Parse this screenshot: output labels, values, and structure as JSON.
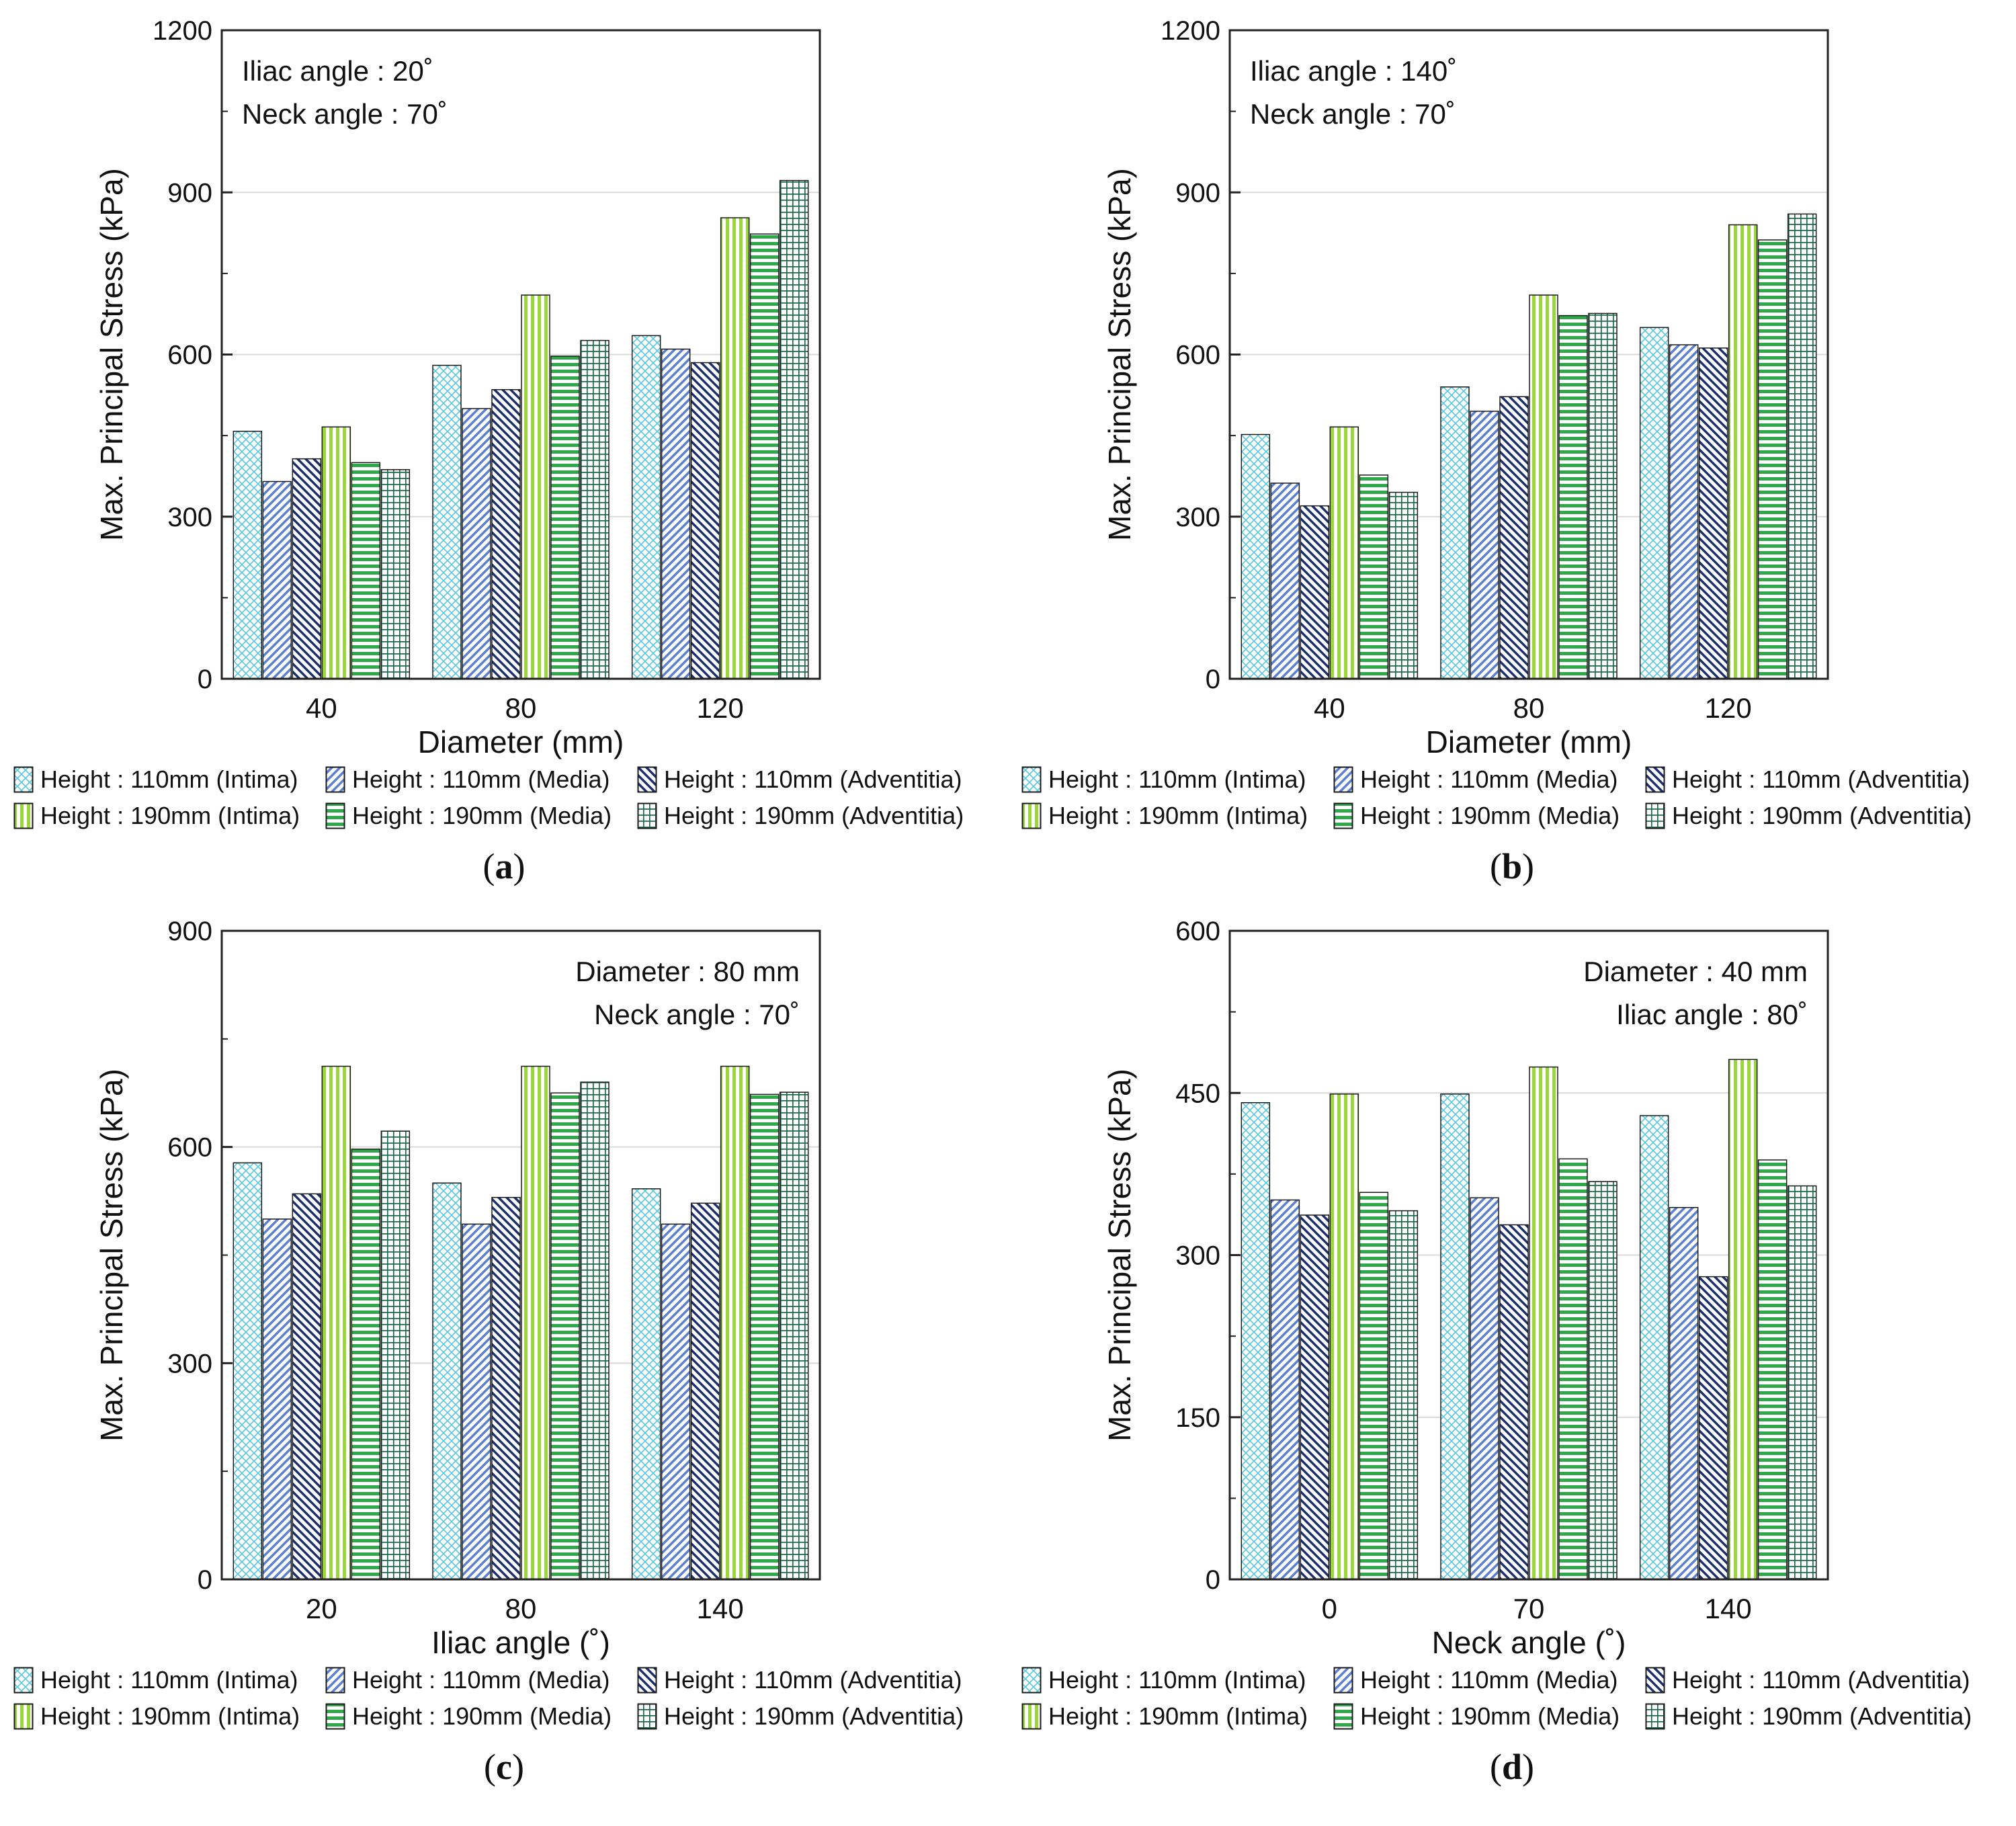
{
  "colors": {
    "intima110": "#56c8dc",
    "media110": "#5b7fd6",
    "adventitia110": "#1c2f6e",
    "intima190": "#9bd63a",
    "media190": "#2fa84a",
    "adventitia190": "#1d6b4a",
    "grid": "#d9d9d9",
    "axis": "#222222"
  },
  "legend": [
    {
      "label": "Height : 110mm (Intima)",
      "pattern": "crosshatch",
      "color_key": "intima110"
    },
    {
      "label": "Height : 110mm (Media)",
      "pattern": "diag-right",
      "color_key": "media110"
    },
    {
      "label": "Height : 110mm (Adventitia)",
      "pattern": "diag-left",
      "color_key": "adventitia110"
    },
    {
      "label": "Height : 190mm (Intima)",
      "pattern": "vertical",
      "color_key": "intima190"
    },
    {
      "label": "Height : 190mm (Media)",
      "pattern": "horizontal",
      "color_key": "media190"
    },
    {
      "label": "Height : 190mm (Adventitia)",
      "pattern": "grid",
      "color_key": "adventitia190"
    }
  ],
  "chart_data": [
    {
      "type": "bar",
      "panel_label": "a",
      "annotation": [
        "Iliac angle : 20˚",
        "Neck angle : 70˚"
      ],
      "annotation_position": "top-left",
      "xlabel": "Diameter (mm)",
      "ylabel": "Max. Principal Stress (kPa)",
      "ylim": [
        0,
        1200
      ],
      "yticks": [
        0,
        300,
        600,
        900,
        1200
      ],
      "categories": [
        "40",
        "80",
        "120"
      ],
      "series": [
        {
          "name": "Height : 110mm (Intima)",
          "values": [
            458,
            580,
            635
          ]
        },
        {
          "name": "Height : 110mm (Media)",
          "values": [
            365,
            500,
            610
          ]
        },
        {
          "name": "Height : 110mm (Adventitia)",
          "values": [
            407,
            535,
            585
          ]
        },
        {
          "name": "Height : 190mm (Intima)",
          "values": [
            466,
            710,
            853
          ]
        },
        {
          "name": "Height : 190mm (Media)",
          "values": [
            400,
            597,
            823
          ]
        },
        {
          "name": "Height : 190mm (Adventitia)",
          "values": [
            387,
            626,
            922
          ]
        }
      ]
    },
    {
      "type": "bar",
      "panel_label": "b",
      "annotation": [
        "Iliac angle : 140˚",
        "Neck angle : 70˚"
      ],
      "annotation_position": "top-left",
      "xlabel": "Diameter (mm)",
      "ylabel": "Max. Principal Stress (kPa)",
      "ylim": [
        0,
        1200
      ],
      "yticks": [
        0,
        300,
        600,
        900,
        1200
      ],
      "categories": [
        "40",
        "80",
        "120"
      ],
      "series": [
        {
          "name": "Height : 110mm (Intima)",
          "values": [
            452,
            540,
            650
          ]
        },
        {
          "name": "Height : 110mm (Media)",
          "values": [
            362,
            495,
            618
          ]
        },
        {
          "name": "Height : 110mm (Adventitia)",
          "values": [
            320,
            522,
            612
          ]
        },
        {
          "name": "Height : 190mm (Intima)",
          "values": [
            466,
            710,
            840
          ]
        },
        {
          "name": "Height : 190mm (Media)",
          "values": [
            377,
            672,
            812
          ]
        },
        {
          "name": "Height : 190mm (Adventitia)",
          "values": [
            345,
            676,
            860
          ]
        }
      ]
    },
    {
      "type": "bar",
      "panel_label": "c",
      "annotation": [
        "Diameter : 80 mm",
        "Neck angle : 70˚"
      ],
      "annotation_position": "top-right",
      "xlabel": "Iliac angle (˚)",
      "ylabel": "Max. Principal Stress (kPa)",
      "ylim": [
        0,
        900
      ],
      "yticks": [
        0,
        300,
        600,
        900
      ],
      "categories": [
        "20",
        "80",
        "140"
      ],
      "series": [
        {
          "name": "Height : 110mm (Intima)",
          "values": [
            578,
            550,
            542
          ]
        },
        {
          "name": "Height : 110mm (Media)",
          "values": [
            500,
            493,
            493
          ]
        },
        {
          "name": "Height : 110mm (Adventitia)",
          "values": [
            535,
            530,
            522
          ]
        },
        {
          "name": "Height : 190mm (Intima)",
          "values": [
            712,
            712,
            712
          ]
        },
        {
          "name": "Height : 190mm (Media)",
          "values": [
            597,
            675,
            673
          ]
        },
        {
          "name": "Height : 190mm (Adventitia)",
          "values": [
            622,
            690,
            676
          ]
        }
      ]
    },
    {
      "type": "bar",
      "panel_label": "d",
      "annotation": [
        "Diameter : 40 mm",
        "Iliac angle : 80˚"
      ],
      "annotation_position": "top-right",
      "xlabel": "Neck angle (˚)",
      "ylabel": "Max. Principal Stress (kPa)",
      "ylim": [
        0,
        600
      ],
      "yticks": [
        0,
        150,
        300,
        450,
        600
      ],
      "categories": [
        "0",
        "70",
        "140"
      ],
      "series": [
        {
          "name": "Height : 110mm (Intima)",
          "values": [
            441,
            449,
            429
          ]
        },
        {
          "name": "Height : 110mm (Media)",
          "values": [
            351,
            353,
            344
          ]
        },
        {
          "name": "Height : 110mm (Adventitia)",
          "values": [
            337,
            328,
            280
          ]
        },
        {
          "name": "Height : 190mm (Intima)",
          "values": [
            449,
            474,
            481
          ]
        },
        {
          "name": "Height : 190mm (Media)",
          "values": [
            358,
            389,
            388
          ]
        },
        {
          "name": "Height : 190mm (Adventitia)",
          "values": [
            341,
            368,
            364
          ]
        }
      ]
    }
  ]
}
